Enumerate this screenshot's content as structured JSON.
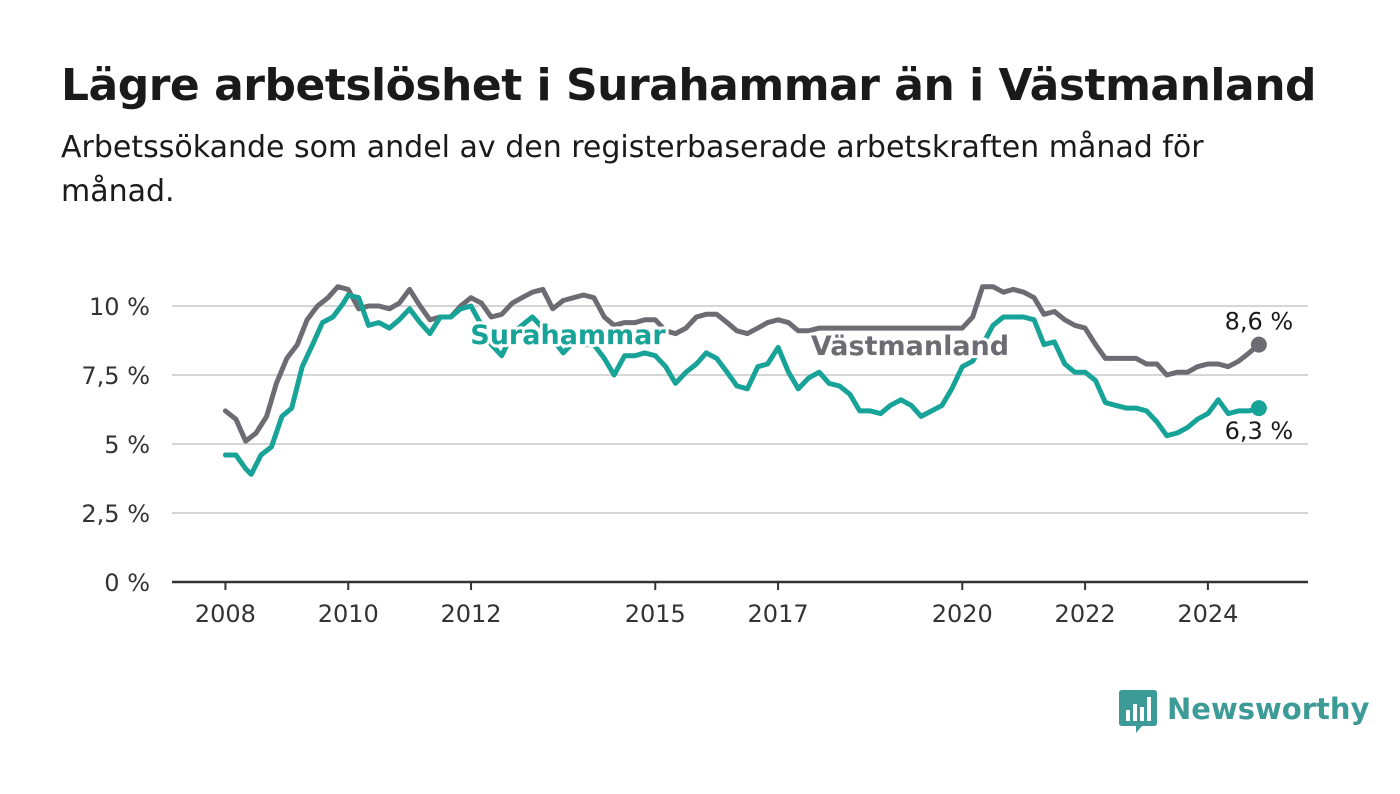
{
  "brand": {
    "name": "Newsworthy",
    "color": "#3c9a97"
  },
  "colors": {
    "surahammar": "#17a398",
    "vastmanland": "#6e6c73",
    "grid": "#d6d6d6",
    "axis": "#333333"
  },
  "chart_data": {
    "type": "line",
    "title": "Lägre arbetslöshet i Surahammar än i Västmanland",
    "subtitle": "Arbetssökande som andel av den registerbaserade arbetskraften månad för månad.",
    "xlabel": "",
    "ylabel": "",
    "ylim": [
      0,
      10
    ],
    "yticks": [
      0,
      2.5,
      5,
      7.5,
      10
    ],
    "ytick_labels": [
      "0 %",
      "2,5 %",
      "5 %",
      "7,5 %",
      "10 %"
    ],
    "xticks": [
      2008,
      2010,
      2012,
      2015,
      2017,
      2020,
      2022,
      2024
    ],
    "xtick_labels": [
      "2008",
      "2010",
      "2012",
      "2015",
      "2017",
      "2020",
      "2022",
      "2024"
    ],
    "grid": true,
    "legend": "inline",
    "series": [
      {
        "name": "Västmanland",
        "color": "#6e6c73",
        "end_label": "8,6 %",
        "points": [
          [
            2008.0,
            6.2
          ],
          [
            2008.17,
            5.9
          ],
          [
            2008.33,
            5.1
          ],
          [
            2008.5,
            5.4
          ],
          [
            2008.67,
            6.0
          ],
          [
            2008.83,
            7.2
          ],
          [
            2009.0,
            8.1
          ],
          [
            2009.17,
            8.6
          ],
          [
            2009.33,
            9.5
          ],
          [
            2009.5,
            10.0
          ],
          [
            2009.67,
            10.3
          ],
          [
            2009.83,
            10.7
          ],
          [
            2010.0,
            10.6
          ],
          [
            2010.17,
            9.9
          ],
          [
            2010.33,
            10.0
          ],
          [
            2010.5,
            10.0
          ],
          [
            2010.67,
            9.9
          ],
          [
            2010.83,
            10.1
          ],
          [
            2011.0,
            10.6
          ],
          [
            2011.17,
            10.0
          ],
          [
            2011.33,
            9.5
          ],
          [
            2011.5,
            9.6
          ],
          [
            2011.67,
            9.6
          ],
          [
            2011.83,
            10.0
          ],
          [
            2012.0,
            10.3
          ],
          [
            2012.17,
            10.1
          ],
          [
            2012.33,
            9.6
          ],
          [
            2012.5,
            9.7
          ],
          [
            2012.67,
            10.1
          ],
          [
            2012.83,
            10.3
          ],
          [
            2013.0,
            10.5
          ],
          [
            2013.17,
            10.6
          ],
          [
            2013.33,
            9.9
          ],
          [
            2013.5,
            10.2
          ],
          [
            2013.67,
            10.3
          ],
          [
            2013.83,
            10.4
          ],
          [
            2014.0,
            10.3
          ],
          [
            2014.17,
            9.6
          ],
          [
            2014.33,
            9.3
          ],
          [
            2014.5,
            9.4
          ],
          [
            2014.67,
            9.4
          ],
          [
            2014.83,
            9.5
          ],
          [
            2015.0,
            9.5
          ],
          [
            2015.17,
            9.1
          ],
          [
            2015.33,
            9.0
          ],
          [
            2015.5,
            9.2
          ],
          [
            2015.67,
            9.6
          ],
          [
            2015.83,
            9.7
          ],
          [
            2016.0,
            9.7
          ],
          [
            2016.17,
            9.4
          ],
          [
            2016.33,
            9.1
          ],
          [
            2016.5,
            9.0
          ],
          [
            2016.67,
            9.2
          ],
          [
            2016.83,
            9.4
          ],
          [
            2017.0,
            9.5
          ],
          [
            2017.17,
            9.4
          ],
          [
            2017.33,
            9.1
          ],
          [
            2017.5,
            9.1
          ],
          [
            2017.67,
            9.2
          ],
          [
            2017.83,
            9.2
          ],
          [
            2018.0,
            9.2
          ],
          [
            2019.75,
            9.2
          ],
          [
            2019.83,
            9.2
          ],
          [
            2020.0,
            9.2
          ],
          [
            2020.17,
            9.6
          ],
          [
            2020.33,
            10.7
          ],
          [
            2020.5,
            10.7
          ],
          [
            2020.67,
            10.5
          ],
          [
            2020.83,
            10.6
          ],
          [
            2021.0,
            10.5
          ],
          [
            2021.17,
            10.3
          ],
          [
            2021.33,
            9.7
          ],
          [
            2021.5,
            9.8
          ],
          [
            2021.67,
            9.5
          ],
          [
            2021.83,
            9.3
          ],
          [
            2022.0,
            9.2
          ],
          [
            2022.17,
            8.6
          ],
          [
            2022.33,
            8.1
          ],
          [
            2022.5,
            8.1
          ],
          [
            2022.67,
            8.1
          ],
          [
            2022.83,
            8.1
          ],
          [
            2023.0,
            7.9
          ],
          [
            2023.17,
            7.9
          ],
          [
            2023.33,
            7.5
          ],
          [
            2023.5,
            7.6
          ],
          [
            2023.67,
            7.6
          ],
          [
            2023.83,
            7.8
          ],
          [
            2024.0,
            7.9
          ],
          [
            2024.17,
            7.9
          ],
          [
            2024.33,
            7.8
          ],
          [
            2024.5,
            8.0
          ],
          [
            2024.67,
            8.3
          ],
          [
            2024.83,
            8.6
          ]
        ]
      },
      {
        "name": "Surahammar",
        "color": "#17a398",
        "end_label": "6,3 %",
        "points": [
          [
            2008.0,
            4.6
          ],
          [
            2008.17,
            4.6
          ],
          [
            2008.33,
            4.1
          ],
          [
            2008.42,
            3.9
          ],
          [
            2008.58,
            4.6
          ],
          [
            2008.75,
            4.9
          ],
          [
            2008.92,
            6.0
          ],
          [
            2009.08,
            6.3
          ],
          [
            2009.25,
            7.8
          ],
          [
            2009.42,
            8.6
          ],
          [
            2009.58,
            9.4
          ],
          [
            2009.75,
            9.6
          ],
          [
            2009.92,
            10.1
          ],
          [
            2010.0,
            10.4
          ],
          [
            2010.17,
            10.3
          ],
          [
            2010.33,
            9.3
          ],
          [
            2010.5,
            9.4
          ],
          [
            2010.67,
            9.2
          ],
          [
            2010.83,
            9.5
          ],
          [
            2011.0,
            9.9
          ],
          [
            2011.17,
            9.4
          ],
          [
            2011.33,
            9.0
          ],
          [
            2011.5,
            9.6
          ],
          [
            2011.67,
            9.6
          ],
          [
            2011.83,
            9.9
          ],
          [
            2012.0,
            10.0
          ],
          [
            2012.17,
            9.3
          ],
          [
            2012.33,
            8.6
          ],
          [
            2012.5,
            8.2
          ],
          [
            2012.67,
            9.0
          ],
          [
            2012.83,
            9.3
          ],
          [
            2013.0,
            9.6
          ],
          [
            2013.17,
            9.2
          ],
          [
            2013.33,
            8.8
          ],
          [
            2013.5,
            8.3
          ],
          [
            2013.67,
            8.7
          ],
          [
            2013.83,
            8.6
          ],
          [
            2014.0,
            8.6
          ],
          [
            2014.17,
            8.1
          ],
          [
            2014.33,
            7.5
          ],
          [
            2014.5,
            8.2
          ],
          [
            2014.67,
            8.2
          ],
          [
            2014.83,
            8.3
          ],
          [
            2015.0,
            8.2
          ],
          [
            2015.17,
            7.8
          ],
          [
            2015.33,
            7.2
          ],
          [
            2015.5,
            7.6
          ],
          [
            2015.67,
            7.9
          ],
          [
            2015.83,
            8.3
          ],
          [
            2016.0,
            8.1
          ],
          [
            2016.17,
            7.6
          ],
          [
            2016.33,
            7.1
          ],
          [
            2016.5,
            7.0
          ],
          [
            2016.67,
            7.8
          ],
          [
            2016.83,
            7.9
          ],
          [
            2017.0,
            8.5
          ],
          [
            2017.17,
            7.6
          ],
          [
            2017.33,
            7.0
          ],
          [
            2017.5,
            7.4
          ],
          [
            2017.67,
            7.6
          ],
          [
            2017.83,
            7.2
          ],
          [
            2018.0,
            7.1
          ],
          [
            2018.17,
            6.8
          ],
          [
            2018.33,
            6.2
          ],
          [
            2018.5,
            6.2
          ],
          [
            2018.67,
            6.1
          ],
          [
            2018.83,
            6.4
          ],
          [
            2019.0,
            6.6
          ],
          [
            2019.17,
            6.4
          ],
          [
            2019.33,
            6.0
          ],
          [
            2019.5,
            6.2
          ],
          [
            2019.67,
            6.4
          ],
          [
            2019.83,
            7.0
          ],
          [
            2020.0,
            7.8
          ],
          [
            2020.17,
            8.0
          ],
          [
            2020.33,
            8.6
          ],
          [
            2020.5,
            9.3
          ],
          [
            2020.67,
            9.6
          ],
          [
            2020.83,
            9.6
          ],
          [
            2021.0,
            9.6
          ],
          [
            2021.17,
            9.5
          ],
          [
            2021.33,
            8.6
          ],
          [
            2021.5,
            8.7
          ],
          [
            2021.67,
            7.9
          ],
          [
            2021.83,
            7.6
          ],
          [
            2022.0,
            7.6
          ],
          [
            2022.17,
            7.3
          ],
          [
            2022.33,
            6.5
          ],
          [
            2022.5,
            6.4
          ],
          [
            2022.67,
            6.3
          ],
          [
            2022.83,
            6.3
          ],
          [
            2023.0,
            6.2
          ],
          [
            2023.17,
            5.8
          ],
          [
            2023.33,
            5.3
          ],
          [
            2023.5,
            5.4
          ],
          [
            2023.67,
            5.6
          ],
          [
            2023.83,
            5.9
          ],
          [
            2024.0,
            6.1
          ],
          [
            2024.17,
            6.6
          ],
          [
            2024.33,
            6.1
          ],
          [
            2024.5,
            6.2
          ],
          [
            2024.67,
            6.2
          ],
          [
            2024.83,
            6.3
          ]
        ]
      }
    ]
  }
}
